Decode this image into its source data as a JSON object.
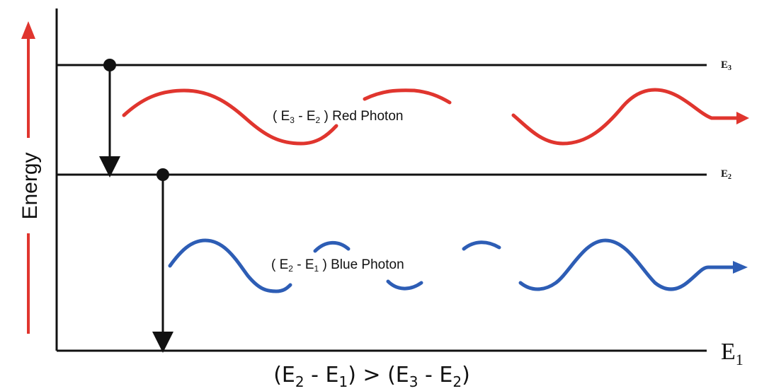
{
  "axis": {
    "energy_label": "Energy"
  },
  "levels": {
    "e3": {
      "base": "E",
      "sub": "3"
    },
    "e2": {
      "base": "E",
      "sub": "2"
    },
    "e1": {
      "base": "E",
      "sub": "1"
    }
  },
  "photons": {
    "red": {
      "open": "( E",
      "sub_a": "3",
      "mid": " - E",
      "sub_b": "2",
      "close": " ) Red Photon",
      "color": "#e0352e"
    },
    "blue": {
      "open": "( E",
      "sub_a": "2",
      "mid": " - E",
      "sub_b": "1",
      "close": " ) Blue Photon",
      "color": "#2d5db5"
    }
  },
  "energy_arrow_color": "#e0352e",
  "inequality": {
    "p1": "(E",
    "s1": "2",
    "p2": " - E",
    "s2": "1",
    "p3": ")  >  (E",
    "s3": "3",
    "p4": " - E",
    "s4": "2",
    "p5": ")"
  }
}
